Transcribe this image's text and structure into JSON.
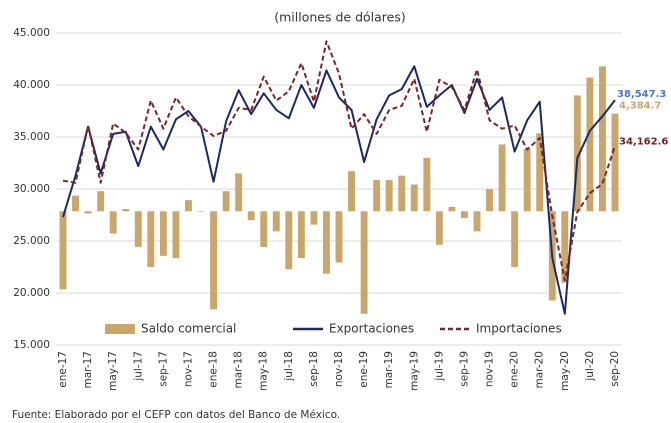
{
  "chart_data": {
    "type": "bar-line",
    "title": "(millones de dólares)",
    "source": "Fuente: Elaborado por el CEFP con datos del Banco de México.",
    "categories": [
      "ene-17",
      null,
      "mar-17",
      null,
      "may-17",
      null,
      "jul-17",
      null,
      "sep-17",
      null,
      "nov-17",
      null,
      "ene-18",
      null,
      "mar-18",
      null,
      "may-18",
      null,
      "jul-18",
      null,
      "sep-18",
      null,
      "nov-18",
      null,
      "ene-19",
      null,
      "mar-19",
      null,
      "may-19",
      null,
      "jul-19",
      null,
      "sep-19",
      null,
      "nov-19",
      null,
      "ene-20",
      null,
      "mar-20",
      null,
      "may-20",
      null,
      "jul-20",
      null,
      "sep-20"
    ],
    "series": [
      {
        "name": "Saldo comercial",
        "color": "#c9a66b",
        "axis": "y2",
        "type": "bar",
        "values": [
          -3500,
          700,
          -100,
          900,
          -1000,
          100,
          -1600,
          -2500,
          -2000,
          -2100,
          500,
          0,
          -4400,
          900,
          1700,
          -400,
          -1600,
          -900,
          -2600,
          -2100,
          -600,
          -2800,
          -2300,
          1800,
          -4600,
          1400,
          1400,
          1600,
          1200,
          2400,
          -1500,
          200,
          -300,
          -900,
          1000,
          3000,
          -2500,
          2800,
          3500,
          -4000,
          -3200,
          5200,
          6000,
          6500,
          4384.7
        ],
        "value_labels": [
          null,
          null,
          null,
          null,
          null,
          null,
          null,
          null,
          null,
          null,
          null,
          null,
          null,
          null,
          null,
          null,
          null,
          null,
          null,
          null,
          null,
          null,
          null,
          null,
          null,
          null,
          null,
          null,
          null,
          null,
          null,
          null,
          null,
          null,
          null,
          null,
          null,
          null,
          null,
          null,
          null,
          null,
          null,
          null,
          "4,384.7"
        ]
      },
      {
        "name": "Exportaciones",
        "color": "#1b2a66",
        "type": "line",
        "style": "solid",
        "label_color": "#4a78c2",
        "values": [
          27300,
          31300,
          36000,
          31500,
          35300,
          35500,
          32200,
          36000,
          33800,
          36700,
          37500,
          36000,
          30700,
          36500,
          39500,
          37200,
          39200,
          37600,
          36800,
          40000,
          37800,
          41400,
          38800,
          37600,
          32600,
          36700,
          39000,
          39600,
          41800,
          37900,
          39000,
          40000,
          37300,
          40600,
          37600,
          38800,
          33600,
          36600,
          38400,
          23400,
          18000,
          33000,
          35600,
          37000,
          38547.3
        ],
        "value_labels": [
          null,
          null,
          null,
          null,
          null,
          null,
          null,
          null,
          null,
          null,
          null,
          null,
          null,
          null,
          null,
          null,
          null,
          null,
          null,
          null,
          null,
          null,
          null,
          null,
          null,
          null,
          null,
          null,
          null,
          null,
          null,
          null,
          null,
          null,
          null,
          null,
          null,
          null,
          null,
          null,
          null,
          null,
          null,
          null,
          "38,547.3"
        ]
      },
      {
        "name": "Importaciones",
        "color": "#7a2626",
        "type": "line",
        "style": "dashed",
        "label_color": "#6e2424",
        "values": [
          30800,
          30600,
          36100,
          30600,
          36300,
          35400,
          33800,
          38500,
          35800,
          38800,
          37000,
          36000,
          35100,
          35600,
          37800,
          37600,
          40800,
          38500,
          39400,
          42100,
          38400,
          44200,
          41100,
          35800,
          37200,
          35300,
          37600,
          38000,
          40600,
          35500,
          40500,
          39800,
          37600,
          41500,
          36600,
          35800,
          36100,
          33800,
          34900,
          27400,
          21200,
          27800,
          29600,
          30500,
          34162.6
        ],
        "value_labels": [
          null,
          null,
          null,
          null,
          null,
          null,
          null,
          null,
          null,
          null,
          null,
          null,
          null,
          null,
          null,
          null,
          null,
          null,
          null,
          null,
          null,
          null,
          null,
          null,
          null,
          null,
          null,
          null,
          null,
          null,
          null,
          null,
          null,
          null,
          null,
          null,
          null,
          null,
          null,
          null,
          null,
          null,
          null,
          null,
          "34,162.6"
        ]
      }
    ],
    "ylim": [
      15000,
      45000
    ],
    "yticks": [
      {
        "value": 15000,
        "label": "15.000"
      },
      {
        "value": 20000,
        "label": "20.000"
      },
      {
        "value": 25000,
        "label": "25.000"
      },
      {
        "value": 30000,
        "label": "30.000"
      },
      {
        "value": 35000,
        "label": "35.000"
      },
      {
        "value": 40000,
        "label": "40.000"
      },
      {
        "value": 45000,
        "label": "45.000"
      }
    ],
    "y2lim": [
      -6000,
      8000
    ],
    "legend": "bottom"
  }
}
